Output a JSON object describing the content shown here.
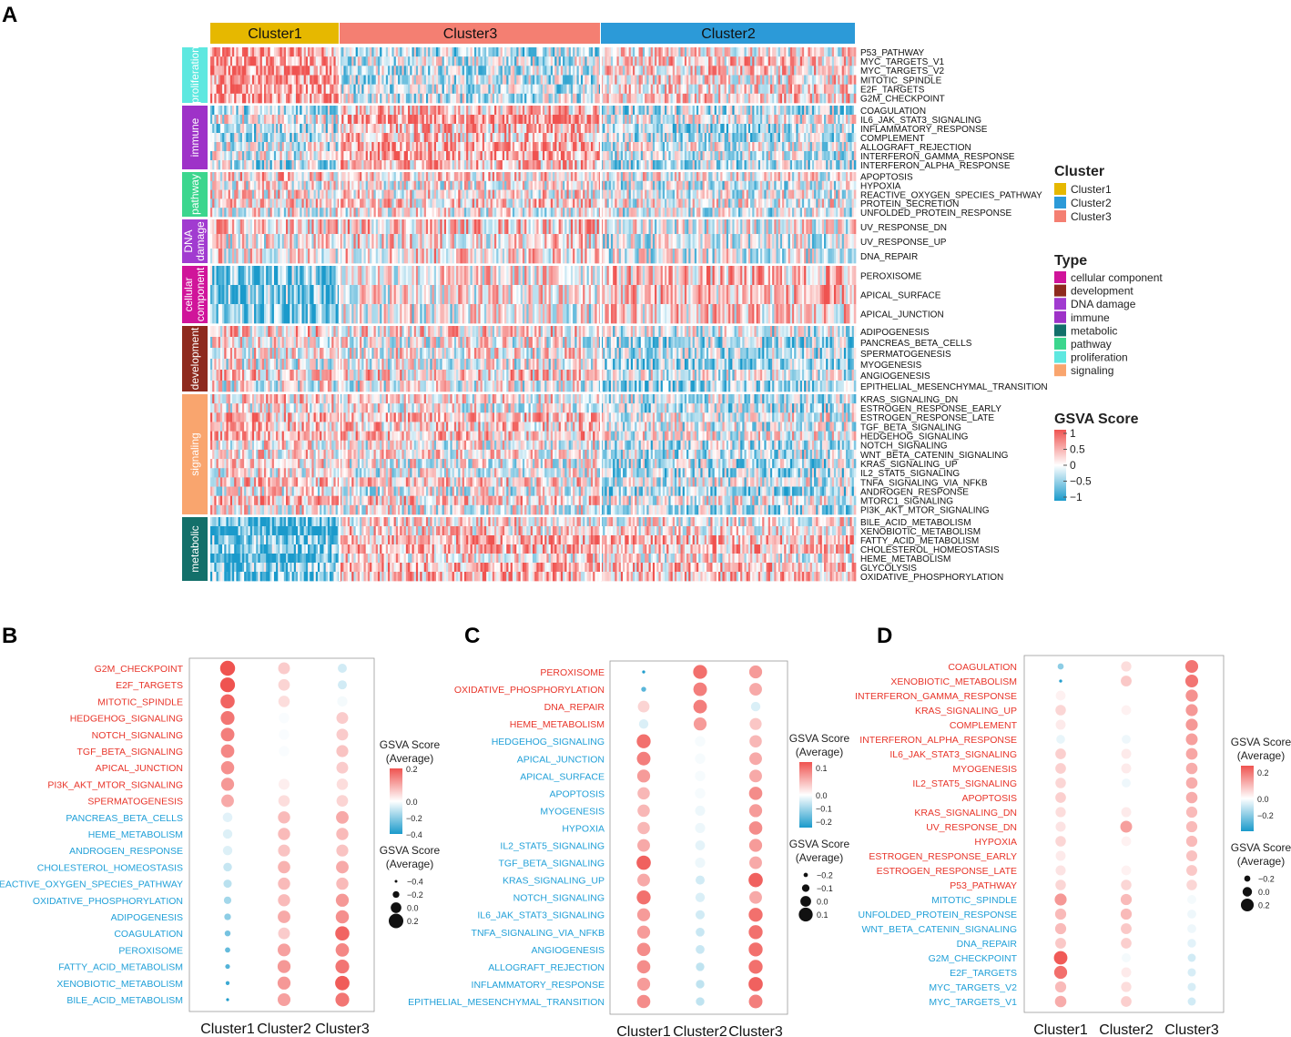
{
  "panel_letters": {
    "a": "A",
    "b": "B",
    "c": "C",
    "d": "D"
  },
  "colors": {
    "Cluster1": "#E6B800",
    "Cluster2": "#2C9AD8",
    "Cluster3": "#F47F72",
    "cellular component": "#D0149A",
    "development": "#8E2A1E",
    "DNA damage": "#A13BD0",
    "immune": "#9E32C8",
    "metabolic": "#13706A",
    "pathway": "#3CD68E",
    "proliferation": "#5EE8E0",
    "signaling": "#F9A56E",
    "heat_low": "#1A9ACB",
    "heat_mid": "#FFFFFF",
    "heat_high": "#EF5350",
    "label_red": "#E8352A",
    "label_blue": "#21A0D8"
  },
  "chart_data": [
    {
      "type": "heatmap",
      "panel": "A",
      "column_clusters": [
        {
          "name": "Cluster1",
          "samples": 65
        },
        {
          "name": "Cluster3",
          "samples": 130
        },
        {
          "name": "Cluster2",
          "samples": 128
        }
      ],
      "row_groups": [
        {
          "type": "proliferation",
          "rows": [
            "P53_PATHWAY",
            "MYC_TARGETS_V1",
            "MYC_TARGETS_V2",
            "MITOTIC_SPINDLE",
            "E2F_TARGETS",
            "G2M_CHECKPOINT"
          ]
        },
        {
          "type": "immune",
          "rows": [
            "COAGULATION",
            "IL6_JAK_STAT3_SIGNALING",
            "INFLAMMATORY_RESPONSE",
            "COMPLEMENT",
            "ALLOGRAFT_REJECTION",
            "INTERFERON_GAMMA_RESPONSE",
            "INTERFERON_ALPHA_RESPONSE"
          ]
        },
        {
          "type": "pathway",
          "rows": [
            "APOPTOSIS",
            "HYPOXIA",
            "REACTIVE_OXYGEN_SPECIES_PATHWAY",
            "PROTEIN_SECRETION",
            "UNFOLDED_PROTEIN_RESPONSE"
          ]
        },
        {
          "type": "DNA damage",
          "label": "DNA damage",
          "rows": [
            "UV_RESPONSE_DN",
            "UV_RESPONSE_UP",
            "DNA_REPAIR"
          ]
        },
        {
          "type": "cellular component",
          "label": "cellular component",
          "rows": [
            "PEROXISOME",
            "APICAL_SURFACE",
            "APICAL_JUNCTION"
          ]
        },
        {
          "type": "development",
          "rows": [
            "ADIPOGENESIS",
            "PANCREAS_BETA_CELLS",
            "SPERMATOGENESIS",
            "MYOGENESIS",
            "ANGIOGENESIS",
            "EPITHELIAL_MESENCHYMAL_TRANSITION"
          ]
        },
        {
          "type": "signaling",
          "rows": [
            "KRAS_SIGNALING_DN",
            "ESTROGEN_RESPONSE_EARLY",
            "ESTROGEN_RESPONSE_LATE",
            "TGF_BETA_SIGNALING",
            "HEDGEHOG_SIGNALING",
            "NOTCH_SIGNALING",
            "WNT_BETA_CATENIN_SIGNALING",
            "KRAS_SIGNALING_UP",
            "IL2_STAT5_SIGNALING",
            "TNFA_SIGNALING_VIA_NFKB",
            "ANDROGEN_RESPONSE",
            "MTORC1_SIGNALING",
            "PI3K_AKT_MTOR_SIGNALING"
          ]
        },
        {
          "type": "metabolic",
          "rows": [
            "BILE_ACID_METABOLISM",
            "XENOBIOTIC_METABOLISM",
            "FATTY_ACID_METABOLISM",
            "CHOLESTEROL_HOMEOSTASIS",
            "HEME_METABOLISM",
            "GLYCOLYSIS",
            "OXIDATIVE_PHOSPHORYLATION"
          ]
        }
      ],
      "legend_cluster": {
        "title": "Cluster",
        "items": [
          "Cluster1",
          "Cluster2",
          "Cluster3"
        ]
      },
      "legend_type": {
        "title": "Type",
        "items": [
          "cellular component",
          "development",
          "DNA damage",
          "immune",
          "metabolic",
          "pathway",
          "proliferation",
          "signaling"
        ]
      },
      "legend_score": {
        "title": "GSVA Score",
        "ticks": [
          "1",
          "0.5",
          "0",
          "−0.5",
          "−1"
        ],
        "range": [
          -1,
          1
        ]
      }
    },
    {
      "type": "scatter",
      "panel": "B",
      "categories": [
        "Cluster1",
        "Cluster2",
        "Cluster3"
      ],
      "color_range": [
        -0.4,
        0.2
      ],
      "color_title": "GSVA Score\n(Average)",
      "color_ticks": [
        {
          "v": 0.2,
          "label": "0.2"
        },
        {
          "v": 0.0,
          "label": "0.0"
        },
        {
          "v": -0.2,
          "label": "−0.2"
        },
        {
          "v": -0.4,
          "label": "−0.4"
        }
      ],
      "size_title": "GSVA Score\n(Average)",
      "size_range": [
        -0.4,
        0.2
      ],
      "size_ticks": [
        {
          "v": -0.4,
          "label": "−0.4"
        },
        {
          "v": -0.2,
          "label": "−0.2"
        },
        {
          "v": 0.0,
          "label": "0.0"
        },
        {
          "v": 0.2,
          "label": "0.2"
        }
      ],
      "rows": [
        {
          "label": "G2M_CHECKPOINT",
          "group": "red",
          "values": [
            0.22,
            0.06,
            -0.08
          ]
        },
        {
          "label": "E2F_TARGETS",
          "group": "red",
          "values": [
            0.21,
            0.05,
            -0.08
          ]
        },
        {
          "label": "MITOTIC_SPINDLE",
          "group": "red",
          "values": [
            0.18,
            0.04,
            -0.02
          ]
        },
        {
          "label": "HEDGEHOG_SIGNALING",
          "group": "red",
          "values": [
            0.16,
            -0.01,
            0.06
          ]
        },
        {
          "label": "NOTCH_SIGNALING",
          "group": "red",
          "values": [
            0.15,
            -0.01,
            0.06
          ]
        },
        {
          "label": "TGF_BETA_SIGNALING",
          "group": "red",
          "values": [
            0.14,
            -0.01,
            0.07
          ]
        },
        {
          "label": "APICAL_JUNCTION",
          "group": "red",
          "values": [
            0.13,
            0.0,
            0.06
          ]
        },
        {
          "label": "PI3K_AKT_MTOR_SIGNALING",
          "group": "red",
          "values": [
            0.12,
            0.02,
            0.04
          ]
        },
        {
          "label": "SPERMATOGENESIS",
          "group": "red",
          "values": [
            0.1,
            0.04,
            0.05
          ]
        },
        {
          "label": "PANCREAS_BETA_CELLS",
          "group": "blue",
          "values": [
            -0.05,
            0.08,
            0.1
          ]
        },
        {
          "label": "HEME_METABOLISM",
          "group": "blue",
          "values": [
            -0.06,
            0.08,
            0.08
          ]
        },
        {
          "label": "ANDROGEN_RESPONSE",
          "group": "blue",
          "values": [
            -0.06,
            0.07,
            0.07
          ]
        },
        {
          "label": "CHOLESTEROL_HOMEOSTASIS",
          "group": "blue",
          "values": [
            -0.1,
            0.09,
            0.1
          ]
        },
        {
          "label": "REACTIVE_OXYGEN_SPECIES_PATHWAY",
          "group": "blue",
          "values": [
            -0.12,
            0.08,
            0.08
          ]
        },
        {
          "label": "OXIDATIVE_PHOSPHORYLATION",
          "group": "blue",
          "values": [
            -0.16,
            0.08,
            0.12
          ]
        },
        {
          "label": "ADIPOGENESIS",
          "group": "blue",
          "values": [
            -0.2,
            0.1,
            0.13
          ]
        },
        {
          "label": "COAGULATION",
          "group": "blue",
          "values": [
            -0.24,
            0.06,
            0.18
          ]
        },
        {
          "label": "PEROXISOME",
          "group": "blue",
          "values": [
            -0.27,
            0.11,
            0.14
          ]
        },
        {
          "label": "FATTY_ACID_METABOLISM",
          "group": "blue",
          "values": [
            -0.3,
            0.12,
            0.16
          ]
        },
        {
          "label": "XENOBIOTIC_METABOLISM",
          "group": "blue",
          "values": [
            -0.34,
            0.12,
            0.19
          ]
        },
        {
          "label": "BILE_ACID_METABOLISM",
          "group": "blue",
          "values": [
            -0.39,
            0.11,
            0.16
          ]
        }
      ]
    },
    {
      "type": "scatter",
      "panel": "C",
      "categories": [
        "Cluster1",
        "Cluster2",
        "Cluster3"
      ],
      "color_range": [
        -0.25,
        0.12
      ],
      "color_title": "GSVA Score\n(Average)",
      "color_ticks": [
        {
          "v": 0.1,
          "label": "0.1"
        },
        {
          "v": 0.0,
          "label": "0.0"
        },
        {
          "v": -0.1,
          "label": "−0.1"
        },
        {
          "v": -0.2,
          "label": "−0.2"
        }
      ],
      "size_title": "GSVA Score\n(Average)",
      "size_range": [
        -0.25,
        0.12
      ],
      "size_ticks": [
        {
          "v": -0.2,
          "label": "−0.2"
        },
        {
          "v": -0.1,
          "label": "−0.1"
        },
        {
          "v": 0.0,
          "label": "0.0"
        },
        {
          "v": 0.1,
          "label": "0.1"
        }
      ],
      "rows": [
        {
          "label": "PEROXISOME",
          "group": "red",
          "values": [
            -0.24,
            0.1,
            0.07
          ]
        },
        {
          "label": "OXIDATIVE_PHOSPHORYLATION",
          "group": "red",
          "values": [
            -0.18,
            0.09,
            0.06
          ]
        },
        {
          "label": "DNA_REPAIR",
          "group": "red",
          "values": [
            0.03,
            0.09,
            -0.04
          ]
        },
        {
          "label": "HEME_METABOLISM",
          "group": "red",
          "values": [
            -0.04,
            0.07,
            0.04
          ]
        },
        {
          "label": "HEDGEHOG_SIGNALING",
          "group": "blue",
          "values": [
            0.1,
            -0.01,
            0.05
          ]
        },
        {
          "label": "APICAL_JUNCTION",
          "group": "blue",
          "values": [
            0.09,
            -0.01,
            0.06
          ]
        },
        {
          "label": "APICAL_SURFACE",
          "group": "blue",
          "values": [
            0.07,
            -0.01,
            0.06
          ]
        },
        {
          "label": "APOPTOSIS",
          "group": "blue",
          "values": [
            0.05,
            -0.01,
            0.08
          ]
        },
        {
          "label": "MYOGENESIS",
          "group": "blue",
          "values": [
            0.05,
            -0.02,
            0.07
          ]
        },
        {
          "label": "HYPOXIA",
          "group": "blue",
          "values": [
            0.05,
            -0.02,
            0.08
          ]
        },
        {
          "label": "IL2_STAT5_SIGNALING",
          "group": "blue",
          "values": [
            0.06,
            -0.03,
            0.07
          ]
        },
        {
          "label": "TGF_BETA_SIGNALING",
          "group": "blue",
          "values": [
            0.11,
            -0.02,
            0.06
          ]
        },
        {
          "label": "KRAS_SIGNALING_UP",
          "group": "blue",
          "values": [
            0.06,
            -0.05,
            0.11
          ]
        },
        {
          "label": "NOTCH_SIGNALING",
          "group": "blue",
          "values": [
            0.1,
            -0.04,
            0.06
          ]
        },
        {
          "label": "IL6_JAK_STAT3_SIGNALING",
          "group": "blue",
          "values": [
            0.07,
            -0.05,
            0.1
          ]
        },
        {
          "label": "TNFA_SIGNALING_VIA_NFKB",
          "group": "blue",
          "values": [
            0.07,
            -0.06,
            0.1
          ]
        },
        {
          "label": "ANGIOGENESIS",
          "group": "blue",
          "values": [
            0.08,
            -0.06,
            0.1
          ]
        },
        {
          "label": "ALLOGRAFT_REJECTION",
          "group": "blue",
          "values": [
            0.08,
            -0.07,
            0.1
          ]
        },
        {
          "label": "INFLAMMATORY_RESPONSE",
          "group": "blue",
          "values": [
            0.07,
            -0.07,
            0.11
          ]
        },
        {
          "label": "EPITHELIAL_MESENCHYMAL_TRANSITION",
          "group": "blue",
          "values": [
            0.08,
            -0.07,
            0.09
          ]
        }
      ]
    },
    {
      "type": "scatter",
      "panel": "D",
      "categories": [
        "Cluster1",
        "Cluster2",
        "Cluster3"
      ],
      "color_range": [
        -0.4,
        0.25
      ],
      "color_title": "GSVA Score\n(Average)",
      "color_ticks": [
        {
          "v": 0.2,
          "label": "0.2"
        },
        {
          "v": 0.0,
          "label": "0.0"
        },
        {
          "v": -0.2,
          "label": "−0.2"
        }
      ],
      "size_title": "GSVA Score\n(Average)",
      "size_range": [
        -0.4,
        0.25
      ],
      "size_ticks": [
        {
          "v": -0.2,
          "label": "−0.2"
        },
        {
          "v": 0.0,
          "label": "0.0"
        },
        {
          "v": 0.2,
          "label": "0.2"
        }
      ],
      "rows": [
        {
          "label": "COAGULATION",
          "group": "red",
          "values": [
            -0.2,
            0.05,
            0.2
          ]
        },
        {
          "label": "XENOBIOTIC_METABOLISM",
          "group": "red",
          "values": [
            -0.38,
            0.08,
            0.2
          ]
        },
        {
          "label": "INTERFERON_GAMMA_RESPONSE",
          "group": "red",
          "values": [
            0.02,
            0.0,
            0.16
          ]
        },
        {
          "label": "KRAS_SIGNALING_UP",
          "group": "red",
          "values": [
            0.06,
            0.02,
            0.15
          ]
        },
        {
          "label": "COMPLEMENT",
          "group": "red",
          "values": [
            0.03,
            0.0,
            0.15
          ]
        },
        {
          "label": "INTERFERON_ALPHA_RESPONSE",
          "group": "red",
          "values": [
            -0.04,
            -0.03,
            0.14
          ]
        },
        {
          "label": "IL6_JAK_STAT3_SIGNALING",
          "group": "red",
          "values": [
            0.07,
            0.03,
            0.13
          ]
        },
        {
          "label": "MYOGENESIS",
          "group": "red",
          "values": [
            0.07,
            0.03,
            0.12
          ]
        },
        {
          "label": "IL2_STAT5_SIGNALING",
          "group": "red",
          "values": [
            0.06,
            -0.03,
            0.12
          ]
        },
        {
          "label": "APOPTOSIS",
          "group": "red",
          "values": [
            0.07,
            0.0,
            0.12
          ]
        },
        {
          "label": "KRAS_SIGNALING_DN",
          "group": "red",
          "values": [
            0.05,
            0.03,
            0.1
          ]
        },
        {
          "label": "UV_RESPONSE_DN",
          "group": "red",
          "values": [
            0.04,
            0.14,
            0.1
          ]
        },
        {
          "label": "HYPOXIA",
          "group": "red",
          "values": [
            0.06,
            0.02,
            0.1
          ]
        },
        {
          "label": "ESTROGEN_RESPONSE_EARLY",
          "group": "red",
          "values": [
            0.03,
            0.0,
            0.09
          ]
        },
        {
          "label": "ESTROGEN_RESPONSE_LATE",
          "group": "red",
          "values": [
            0.04,
            0.02,
            0.08
          ]
        },
        {
          "label": "P53_PATHWAY",
          "group": "red",
          "values": [
            0.06,
            0.06,
            0.06
          ]
        },
        {
          "label": "MITOTIC_SPINDLE",
          "group": "blue",
          "values": [
            0.15,
            0.1,
            -0.02
          ]
        },
        {
          "label": "UNFOLDED_PROTEIN_RESPONSE",
          "group": "blue",
          "values": [
            0.1,
            0.1,
            -0.03
          ]
        },
        {
          "label": "WNT_BETA_CATENIN_SIGNALING",
          "group": "blue",
          "values": [
            0.1,
            0.08,
            -0.03
          ]
        },
        {
          "label": "DNA_REPAIR",
          "group": "blue",
          "values": [
            0.08,
            0.07,
            -0.05
          ]
        },
        {
          "label": "G2M_CHECKPOINT",
          "group": "blue",
          "values": [
            0.24,
            -0.02,
            -0.08
          ]
        },
        {
          "label": "E2F_TARGETS",
          "group": "blue",
          "values": [
            0.21,
            0.03,
            -0.07
          ]
        },
        {
          "label": "MYC_TARGETS_V2",
          "group": "blue",
          "values": [
            0.1,
            0.05,
            -0.07
          ]
        },
        {
          "label": "MYC_TARGETS_V1",
          "group": "blue",
          "values": [
            0.12,
            0.07,
            -0.08
          ]
        }
      ]
    }
  ]
}
